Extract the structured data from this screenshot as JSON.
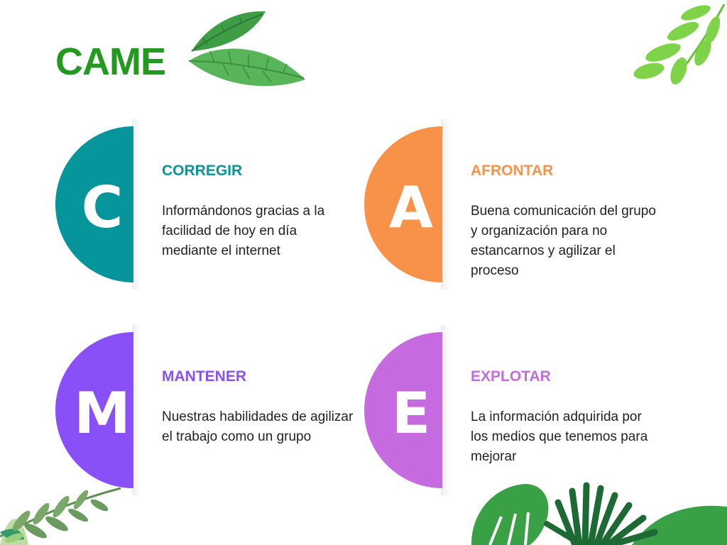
{
  "slide": {
    "title": "CAME",
    "title_color": "#239a1f"
  },
  "items": [
    {
      "letter": "C",
      "heading": "CORREGIR",
      "body": "Informándonos gracias a la facilidad de hoy en día mediante el internet",
      "color": "#06959a"
    },
    {
      "letter": "A",
      "heading": "AFRONTAR",
      "body": "Buena comunicación del grupo y organización para no estancarnos y agilizar el proceso",
      "color": "#f99249"
    },
    {
      "letter": "M",
      "heading": "MANTENER",
      "body": "Nuestras habilidades de agilizar el trabajo como un grupo",
      "color": "#8a50f8"
    },
    {
      "letter": "E",
      "heading": "EXPLOTAR",
      "body": "La información adquirida por los medios que tenemos para mejorar",
      "color": "#c66bdf"
    }
  ],
  "decorations": [
    "leaf-icon",
    "branch-icon",
    "fern-icon",
    "monstera-leaf-icon",
    "palm-leaf-icon"
  ]
}
